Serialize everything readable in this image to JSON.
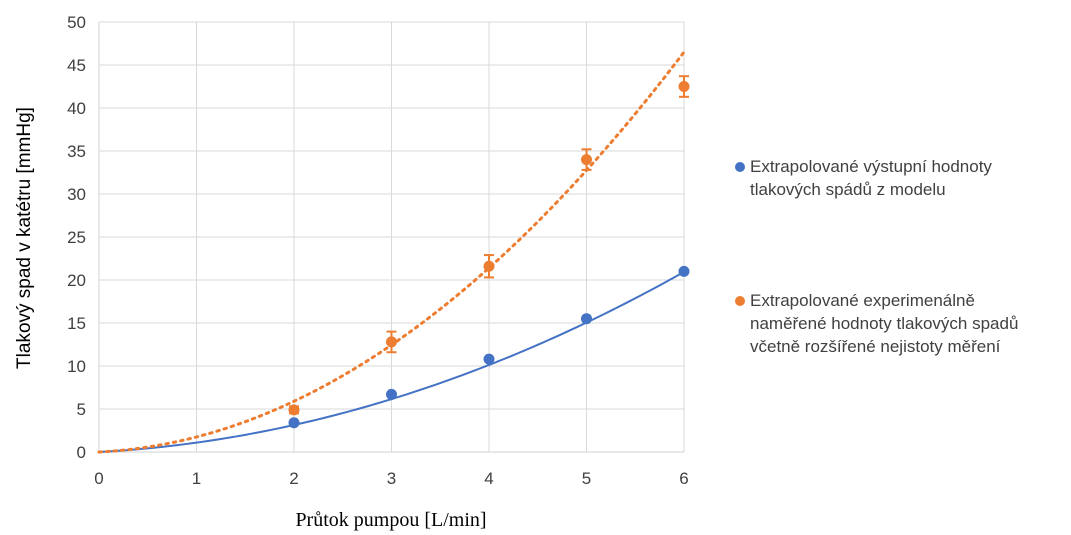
{
  "chart_data": {
    "type": "scatter",
    "xlabel": "Průtok pumpou [L/min]",
    "ylabel": "Tlakový spad v katétru [mmHg]",
    "xlim": [
      0,
      6
    ],
    "ylim": [
      0,
      50
    ],
    "x_ticks": [
      "0",
      "1",
      "2",
      "3",
      "4",
      "5",
      "6"
    ],
    "y_ticks": [
      "0",
      "5",
      "10",
      "15",
      "20",
      "25",
      "30",
      "35",
      "40",
      "45",
      "50"
    ],
    "grid": true,
    "legend_position": "right",
    "series": [
      {
        "name": "Extrapolované výstupní hodnoty tlakových spádů z modelu",
        "color": "#4472C4",
        "x": [
          2,
          3,
          4,
          5,
          6
        ],
        "y": [
          3.4,
          6.7,
          10.8,
          15.5,
          21.0
        ],
        "trendline": "solid"
      },
      {
        "name": "Extrapolované experimenálně naměřené hodnoty tlakových spadů včetně rozšířené nejistoty měření",
        "color": "#ED7D31",
        "x": [
          2,
          3,
          4,
          5,
          6
        ],
        "y": [
          4.9,
          12.8,
          21.6,
          34.0,
          42.5
        ],
        "error": [
          0.4,
          1.2,
          1.3,
          1.2,
          1.2
        ],
        "trendline": "dotted"
      }
    ],
    "trendlines": [
      {
        "series": 0,
        "kind": "polynomial-2",
        "coef": [
          0.48,
          0.61,
          0
        ]
      },
      {
        "series": 1,
        "kind": "polynomial-2",
        "coef": [
          1.2,
          0.55,
          0
        ]
      }
    ]
  }
}
